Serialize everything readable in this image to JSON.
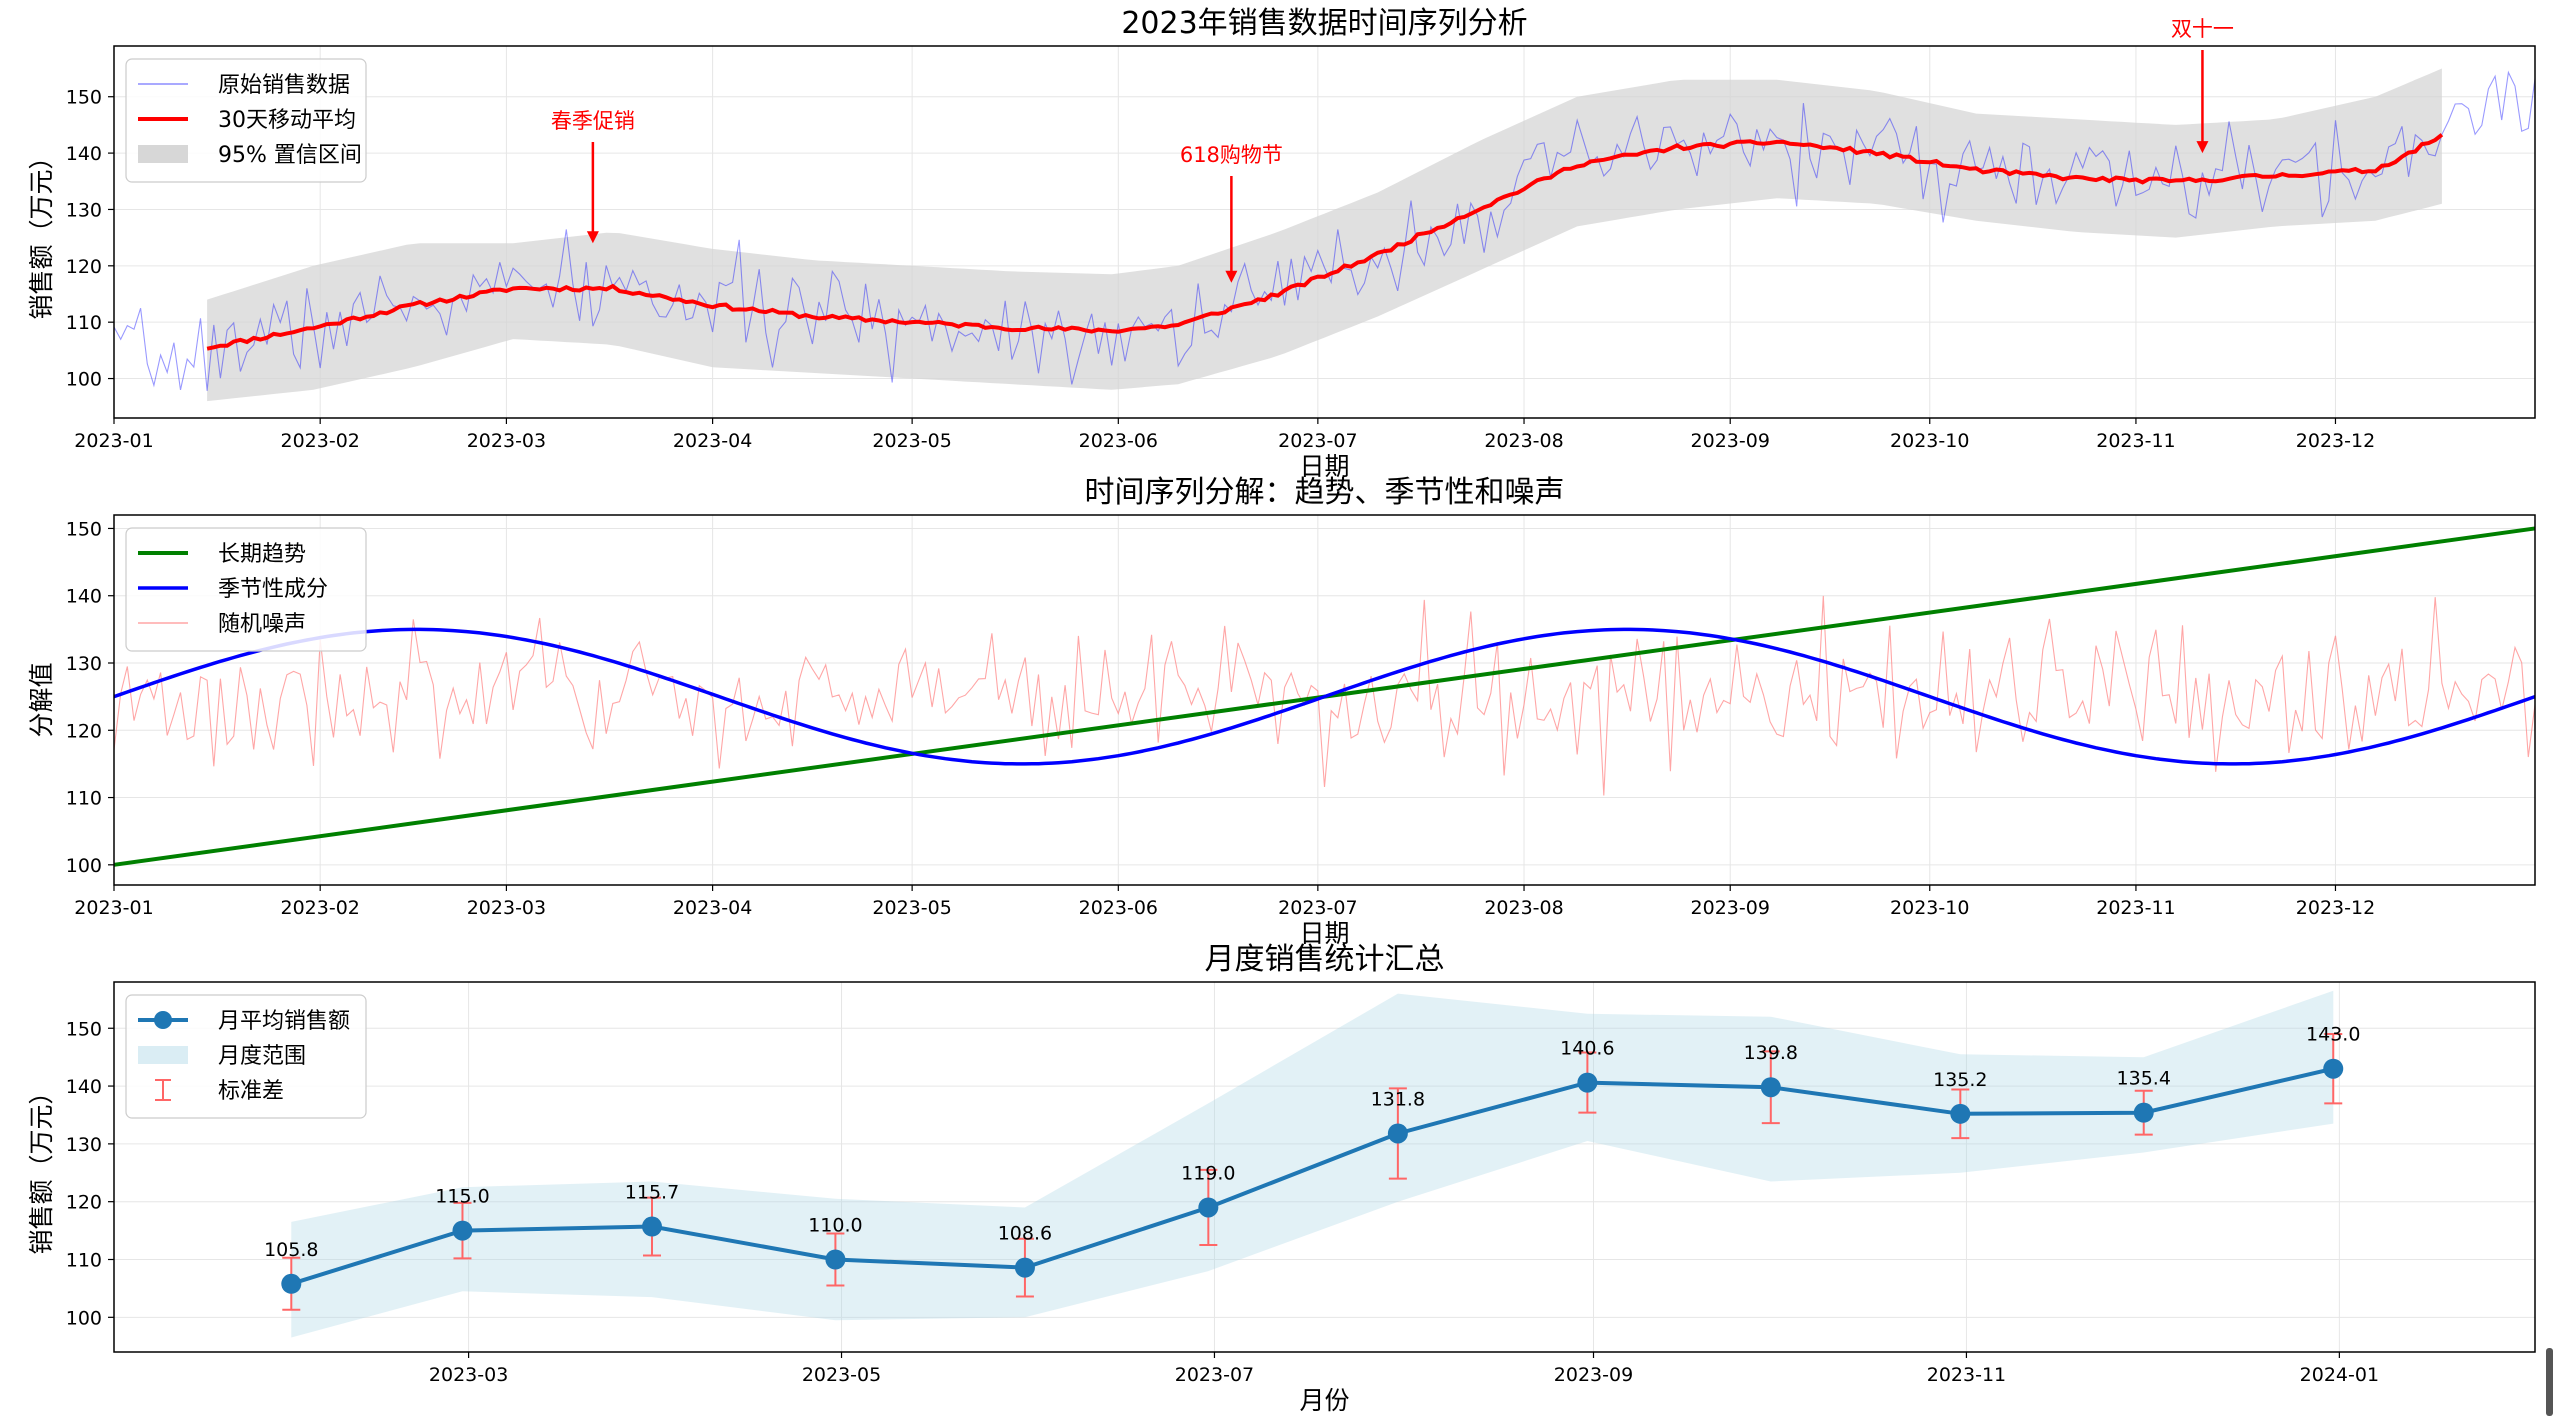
{
  "chart_data": [
    {
      "type": "line",
      "title": "2023年销售数据时间序列分析",
      "xlabel": "日期",
      "ylabel": "销售额（万元）",
      "x_domain": [
        "2023-01-01",
        "2023-12-31"
      ],
      "ylim": [
        93,
        159
      ],
      "yticks": [
        100,
        110,
        120,
        130,
        140,
        150
      ],
      "xtick_labels": [
        "2023-01",
        "2023-02",
        "2023-03",
        "2023-04",
        "2023-05",
        "2023-06",
        "2023-07",
        "2023-08",
        "2023-09",
        "2023-10",
        "2023-11",
        "2023-12"
      ],
      "grid": true,
      "legend": [
        "原始销售数据",
        "30天移动平均",
        "95% 置信区间"
      ],
      "legend_position": "upper-left",
      "series": [
        {
          "name": "原始销售数据",
          "style": "thin-blue-line",
          "daily": true,
          "noise_seed": 7,
          "noise_amplitude": 6.5
        },
        {
          "name": "30天移动平均",
          "style": "thick-red-line",
          "start_day": 14,
          "end_day": 350,
          "x": [
            14,
            30,
            45,
            60,
            75,
            90,
            105,
            120,
            135,
            150,
            160,
            175,
            190,
            205,
            220,
            235,
            250,
            265,
            280,
            295,
            310,
            325,
            340,
            350
          ],
          "values": [
            105.5,
            109,
            113,
            116,
            116,
            113,
            111,
            110,
            109,
            108.5,
            109.5,
            115,
            122,
            130,
            138,
            141,
            142,
            140,
            137,
            135.5,
            135,
            136,
            137,
            143
          ]
        },
        {
          "name": "95% 置信区间",
          "style": "grey-band",
          "start_day": 14,
          "end_day": 350,
          "x": [
            14,
            30,
            45,
            60,
            75,
            90,
            105,
            120,
            135,
            150,
            160,
            175,
            190,
            205,
            220,
            235,
            250,
            265,
            280,
            295,
            310,
            325,
            340,
            350
          ],
          "upper": [
            114,
            120,
            124,
            124,
            126,
            123,
            121,
            120,
            119,
            118.5,
            120,
            126,
            133,
            142,
            150,
            153,
            153,
            151,
            147,
            146,
            145,
            146,
            150,
            155
          ],
          "lower": [
            96,
            98,
            102,
            107,
            106,
            102,
            101,
            100,
            99,
            98,
            99,
            104,
            111,
            119,
            127,
            130,
            132,
            131,
            128,
            126,
            125,
            127,
            128,
            131
          ]
        }
      ],
      "annotations": [
        {
          "text": "春季促销",
          "day": 72,
          "value": 124
        },
        {
          "text": "618购物节",
          "day": 168,
          "value": 117
        },
        {
          "text": "双十一",
          "day": 314,
          "value": 140
        }
      ]
    },
    {
      "type": "line",
      "title": "时间序列分解：趋势、季节性和噪声",
      "xlabel": "日期",
      "ylabel": "分解值",
      "x_domain": [
        "2023-01-01",
        "2023-12-31"
      ],
      "ylim": [
        97,
        152
      ],
      "yticks": [
        100,
        110,
        120,
        130,
        140,
        150
      ],
      "xtick_labels": [
        "2023-01",
        "2023-02",
        "2023-03",
        "2023-04",
        "2023-05",
        "2023-06",
        "2023-07",
        "2023-08",
        "2023-09",
        "2023-10",
        "2023-11",
        "2023-12"
      ],
      "grid": true,
      "legend": [
        "长期趋势",
        "季节性成分",
        "随机噪声"
      ],
      "legend_position": "upper-left",
      "series": [
        {
          "name": "长期趋势",
          "style": "green-line",
          "formula": "100 + 50*t/364",
          "start_value": 100,
          "end_value": 150
        },
        {
          "name": "季节性成分",
          "style": "blue-line",
          "formula": "125 + 10*sin(2*pi*t/182)",
          "center": 125,
          "amplitude": 10,
          "period_days": 182
        },
        {
          "name": "随机噪声",
          "style": "thin-pink-line",
          "center": 125,
          "noise_seed": 3,
          "noise_amplitude": 7
        }
      ]
    },
    {
      "type": "line",
      "title": "月度销售统计汇总",
      "xlabel": "月份",
      "ylabel": "销售额（万元）",
      "ylim": [
        94,
        158
      ],
      "yticks": [
        100,
        110,
        120,
        130,
        140,
        150
      ],
      "xtick_labels": [
        "2023-03",
        "2023-05",
        "2023-07",
        "2023-09",
        "2023-11",
        "2024-01"
      ],
      "grid": true,
      "legend": [
        "月平均销售额",
        "月度范围",
        "标准差"
      ],
      "legend_position": "upper-left",
      "series": [
        {
          "name": "月平均销售额",
          "x": [
            "2023-01-31",
            "2023-02-28",
            "2023-03-31",
            "2023-04-30",
            "2023-05-31",
            "2023-06-30",
            "2023-07-31",
            "2023-08-31",
            "2023-09-30",
            "2023-10-31",
            "2023-11-30",
            "2023-12-31"
          ],
          "values": [
            105.8,
            115.0,
            115.7,
            110.0,
            108.6,
            119.0,
            131.8,
            140.6,
            139.8,
            135.2,
            135.4,
            143.0
          ],
          "labels": [
            "105.8",
            "115.0",
            "115.7",
            "110.0",
            "108.6",
            "119.0",
            "131.8",
            "140.6",
            "139.8",
            "135.2",
            "135.4",
            "143.0"
          ],
          "std": [
            4.5,
            4.8,
            5.0,
            4.5,
            5.0,
            6.5,
            7.8,
            5.2,
            6.2,
            4.2,
            3.8,
            6.0
          ]
        },
        {
          "name": "月度范围",
          "min": [
            96.5,
            104.5,
            103.5,
            99.5,
            100,
            108,
            120,
            130.5,
            123.5,
            125,
            128.5,
            133.5
          ],
          "max": [
            116.5,
            122.5,
            123.5,
            120.5,
            119,
            137,
            156,
            152.5,
            152,
            145.5,
            145,
            156.5
          ]
        }
      ]
    }
  ]
}
